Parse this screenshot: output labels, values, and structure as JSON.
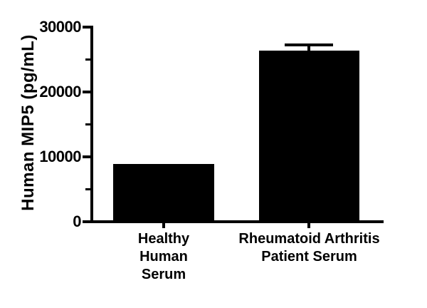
{
  "figure": {
    "background": "#ffffff",
    "foreground": "#000000"
  },
  "chart_data": {
    "type": "bar",
    "title": "",
    "ylabel": "Human MIP5 (pg/mL)",
    "xlabel": "",
    "categories": [
      "Healthy Human Serum",
      "Rheumatoid Arthritis Patient Serum"
    ],
    "categories_lines": [
      [
        "Healthy",
        "Human",
        "Serum"
      ],
      [
        "Rheumatoid Arthritis",
        "Patient Serum"
      ]
    ],
    "series": [
      {
        "name": "Human MIP5 (pg/mL)",
        "values": [
          8900,
          26400
        ],
        "error_plus": [
          0,
          900
        ]
      }
    ],
    "ylim": [
      0,
      30000
    ],
    "yticks": [
      {
        "value": 30000,
        "label": "30000"
      },
      {
        "value": 20000,
        "label": "20000"
      },
      {
        "value": 10000,
        "label": "10000"
      },
      {
        "value": 0,
        "label": "0"
      }
    ],
    "minor_yticks": [
      25000,
      15000,
      5000
    ],
    "bar_color": "#000000",
    "grid": false,
    "legend": false
  }
}
